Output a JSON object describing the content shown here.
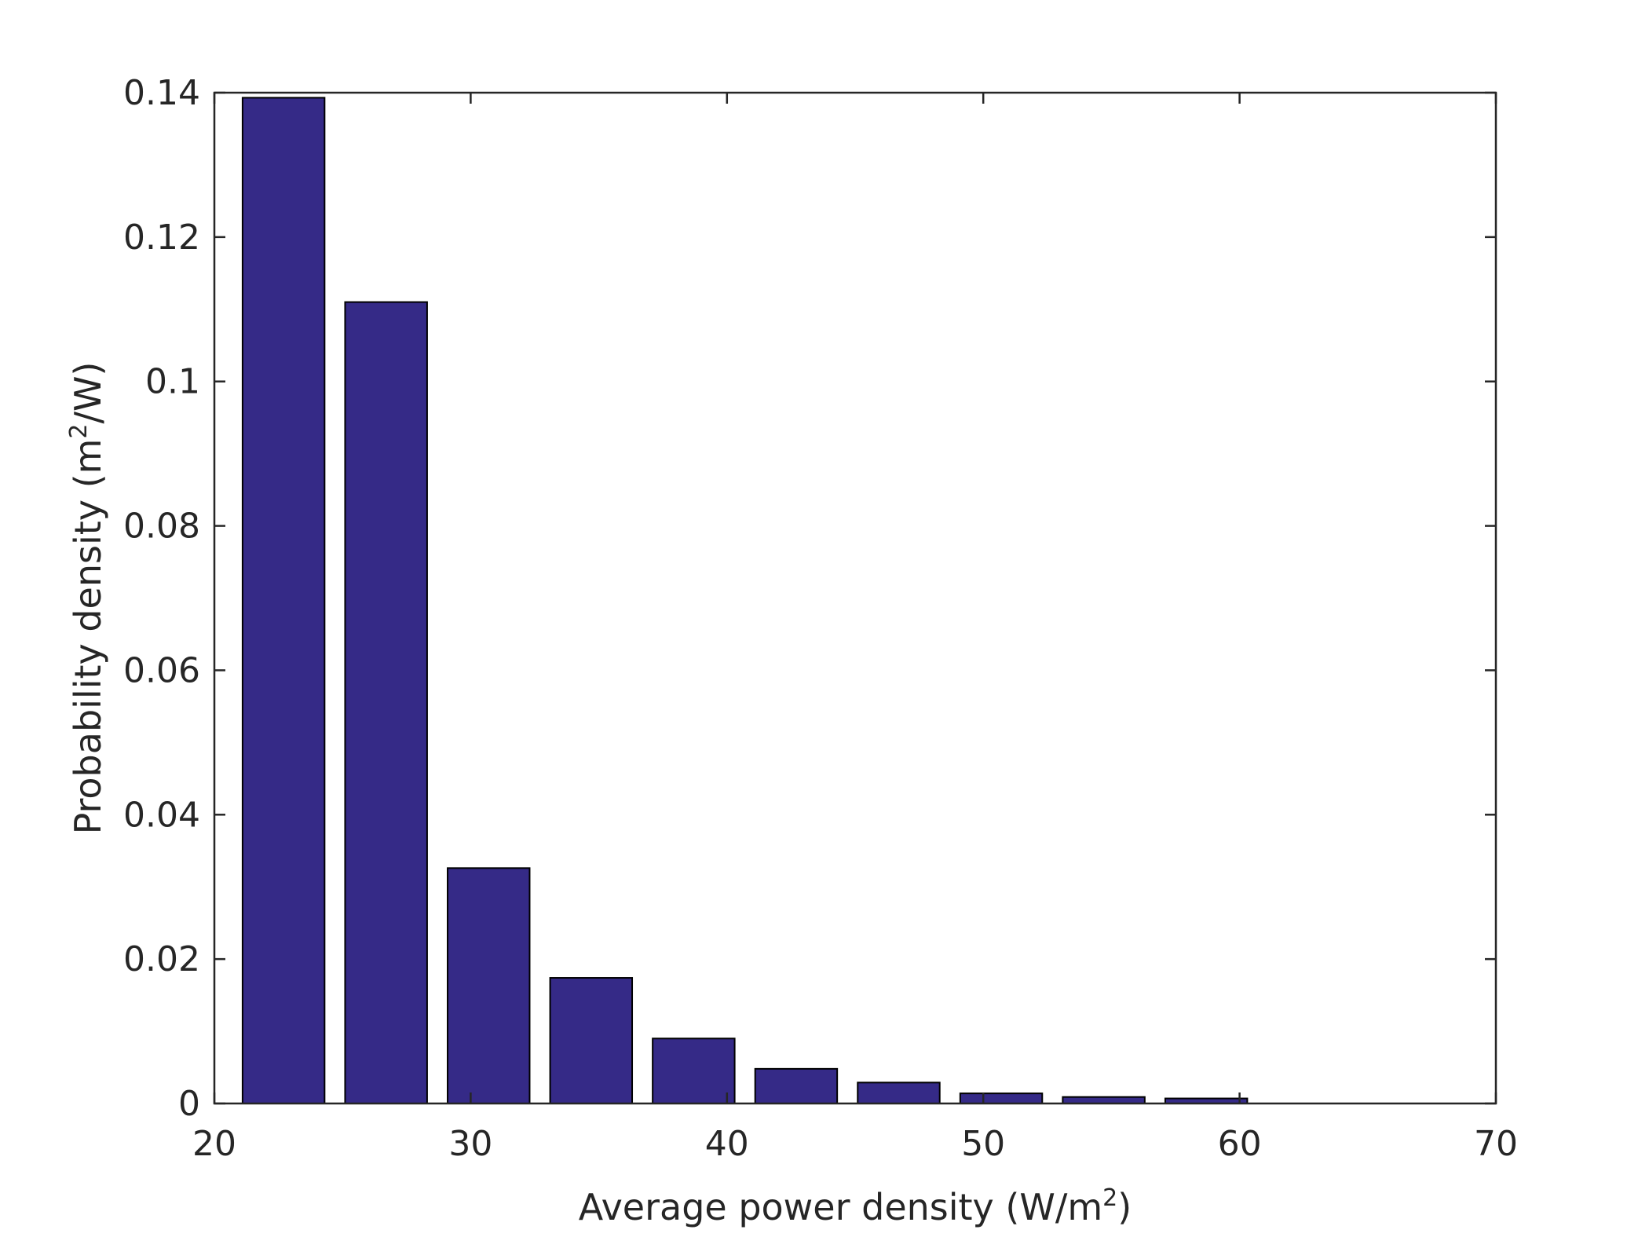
{
  "chart_data": {
    "type": "bar",
    "title": "",
    "xlabel": {
      "prefix": "Average power density (W/m",
      "sup": "2",
      "suffix": ")"
    },
    "ylabel": {
      "prefix": "Probability density (m",
      "sup": "2",
      "suffix": "/W)"
    },
    "xlim": [
      20,
      70
    ],
    "ylim": [
      0,
      0.14
    ],
    "xticks": [
      20,
      30,
      40,
      50,
      60,
      70
    ],
    "xtick_labels": [
      "20",
      "30",
      "40",
      "50",
      "60",
      "70"
    ],
    "yticks": [
      0,
      0.02,
      0.04,
      0.06,
      0.08,
      0.1,
      0.12,
      0.14
    ],
    "ytick_labels": [
      "0",
      "0.02",
      "0.04",
      "0.06",
      "0.08",
      "0.1",
      "0.12",
      "0.14"
    ],
    "bar_width": 3.2,
    "bin_centers": [
      22.7,
      26.7,
      30.7,
      34.7,
      38.7,
      42.7,
      46.7,
      50.7,
      54.7,
      58.7
    ],
    "values": [
      0.1393,
      0.111,
      0.0326,
      0.0174,
      0.009,
      0.0048,
      0.0029,
      0.0014,
      0.0009,
      0.0007
    ],
    "bar_color": "#352a87",
    "grid": false,
    "legend": false
  }
}
